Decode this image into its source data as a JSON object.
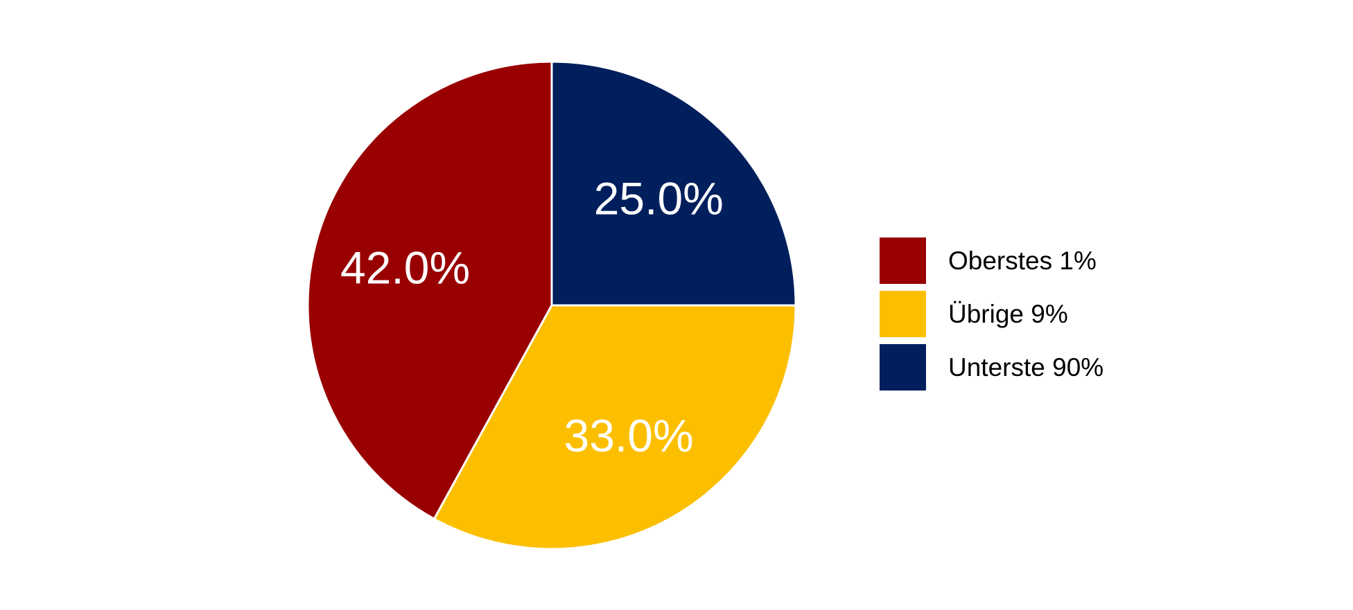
{
  "chart_data": {
    "type": "pie",
    "categories": [
      "Oberstes 1%",
      "Übrige 9%",
      "Unterste 90%"
    ],
    "values": [
      42.0,
      33.0,
      25.0
    ],
    "labels": [
      "42.0%",
      "33.0%",
      "25.0%"
    ],
    "colors": [
      "#990000",
      "#FCBF00",
      "#001F5C"
    ],
    "slice_border_color": "#ffffff",
    "start_angle": "12 o'clock",
    "direction": "counterclockwise",
    "legend_placement": "right",
    "title": ""
  }
}
